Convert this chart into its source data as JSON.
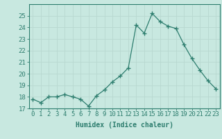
{
  "x": [
    0,
    1,
    2,
    3,
    4,
    5,
    6,
    7,
    8,
    9,
    10,
    11,
    12,
    13,
    14,
    15,
    16,
    17,
    18,
    19,
    20,
    21,
    22,
    23
  ],
  "y": [
    17.8,
    17.5,
    18.0,
    18.0,
    18.2,
    18.0,
    17.8,
    17.2,
    18.1,
    18.6,
    19.3,
    19.8,
    20.5,
    24.2,
    23.5,
    25.2,
    24.5,
    24.1,
    23.9,
    22.5,
    21.3,
    20.3,
    19.4,
    18.7
  ],
  "xlabel": "Humidex (Indice chaleur)",
  "ylim": [
    17,
    26
  ],
  "xlim": [
    -0.5,
    23.5
  ],
  "yticks": [
    17,
    18,
    19,
    20,
    21,
    22,
    23,
    24,
    25
  ],
  "xticks": [
    0,
    1,
    2,
    3,
    4,
    5,
    6,
    7,
    8,
    9,
    10,
    11,
    12,
    13,
    14,
    15,
    16,
    17,
    18,
    19,
    20,
    21,
    22,
    23
  ],
  "line_color": "#2d7d6e",
  "marker": "+",
  "marker_size": 4,
  "bg_color": "#c8e8e0",
  "grid_color": "#b8d8d0",
  "axis_color": "#2d7d6e",
  "label_color": "#2d7d6e",
  "tick_color": "#2d7d6e",
  "xlabel_fontsize": 7,
  "tick_fontsize": 6.5
}
